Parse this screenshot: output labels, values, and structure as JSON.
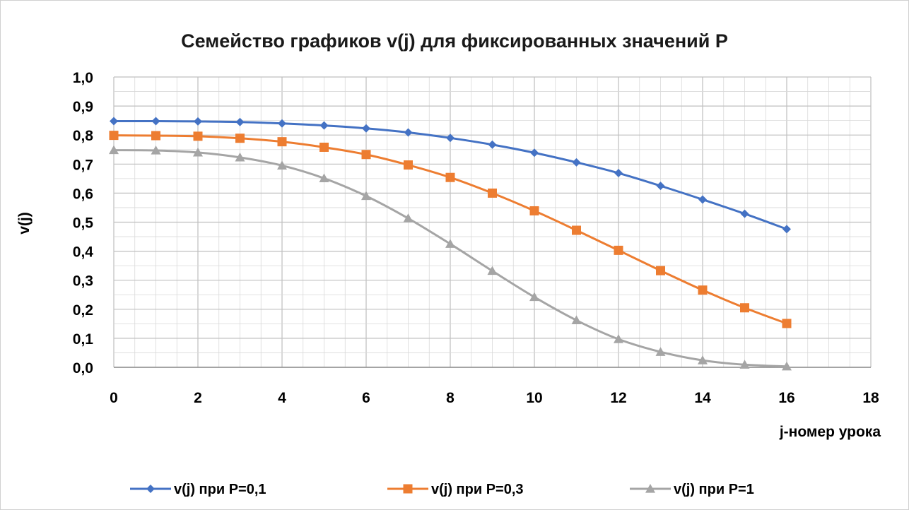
{
  "chart_data": {
    "type": "line",
    "title": "Семейство графиков v(j) для фиксированных значений P",
    "xlabel": "j-номер урока",
    "ylabel": "v(j)",
    "xlim": [
      0,
      18
    ],
    "ylim": [
      0,
      1.0
    ],
    "x_ticks": [
      "0",
      "2",
      "4",
      "6",
      "8",
      "10",
      "12",
      "14",
      "16",
      "18"
    ],
    "y_ticks": [
      "0,0",
      "0,1",
      "0,2",
      "0,3",
      "0,4",
      "0,5",
      "0,6",
      "0,7",
      "0,8",
      "0,9",
      "1,0"
    ],
    "grid": true,
    "legend_position": "bottom",
    "x": [
      0,
      1,
      2,
      3,
      4,
      5,
      6,
      7,
      8,
      9,
      10,
      11,
      12,
      13,
      14,
      15,
      16
    ],
    "series": [
      {
        "name": "v(j) при P=0,1",
        "color": "#4472c4",
        "marker": "diamond",
        "values": [
          0.848,
          0.848,
          0.847,
          0.845,
          0.84,
          0.833,
          0.823,
          0.809,
          0.79,
          0.767,
          0.739,
          0.706,
          0.669,
          0.625,
          0.578,
          0.529,
          0.476
        ]
      },
      {
        "name": "v(j) при P=0,3",
        "color": "#ed7d31",
        "marker": "square",
        "values": [
          0.799,
          0.798,
          0.796,
          0.789,
          0.777,
          0.758,
          0.733,
          0.697,
          0.654,
          0.6,
          0.539,
          0.472,
          0.403,
          0.333,
          0.266,
          0.205,
          0.151
        ]
      },
      {
        "name": "v(j) при P=1",
        "color": "#a5a5a5",
        "marker": "triangle",
        "values": [
          0.748,
          0.747,
          0.74,
          0.723,
          0.695,
          0.651,
          0.59,
          0.513,
          0.425,
          0.332,
          0.242,
          0.162,
          0.097,
          0.053,
          0.024,
          0.009,
          0.003
        ]
      }
    ]
  }
}
